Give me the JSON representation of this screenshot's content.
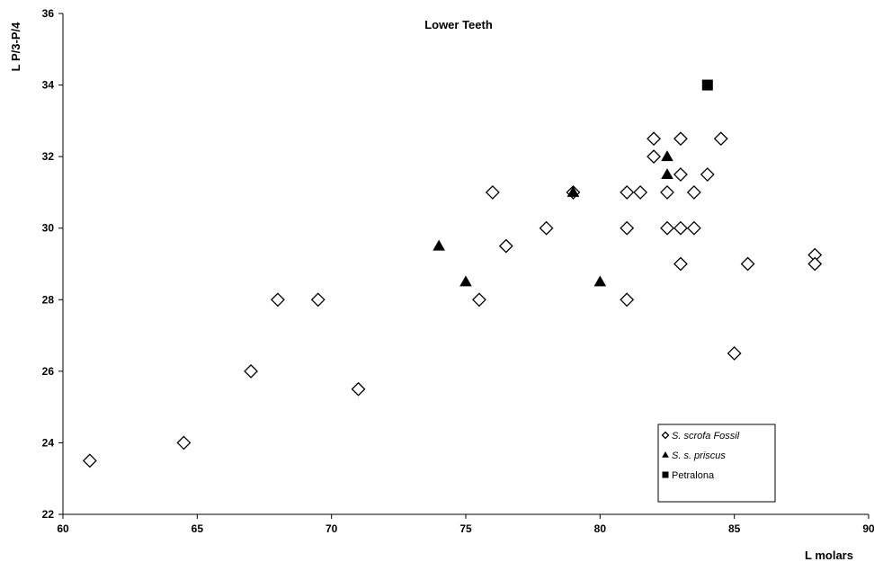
{
  "chart_data": {
    "type": "scatter",
    "title": "Lower Teeth",
    "xlabel": "L molars",
    "ylabel": "L P/3-P/4",
    "xlim": [
      60,
      90
    ],
    "ylim": [
      22,
      36
    ],
    "x_ticks": [
      "60",
      "65",
      "70",
      "75",
      "80",
      "85",
      "90"
    ],
    "y_ticks": [
      "22",
      "24",
      "26",
      "28",
      "30",
      "32",
      "34",
      "36"
    ],
    "grid": false,
    "legend_position": "bottom-right",
    "series": [
      {
        "name": "S. scrofa Fossil",
        "marker": "diamond-open",
        "color": "#000000",
        "points": [
          [
            61,
            23.5
          ],
          [
            64.5,
            24
          ],
          [
            67,
            26
          ],
          [
            68,
            28
          ],
          [
            69.5,
            28
          ],
          [
            71,
            25.5
          ],
          [
            75.5,
            28
          ],
          [
            76,
            31
          ],
          [
            76.5,
            29.5
          ],
          [
            78,
            30
          ],
          [
            79,
            31
          ],
          [
            81,
            31
          ],
          [
            81,
            30
          ],
          [
            81,
            28
          ],
          [
            81.5,
            31
          ],
          [
            82,
            32.5
          ],
          [
            82,
            32
          ],
          [
            82.5,
            31
          ],
          [
            82.5,
            30
          ],
          [
            83,
            32.5
          ],
          [
            83,
            31.5
          ],
          [
            83,
            30
          ],
          [
            83,
            29
          ],
          [
            83.5,
            31
          ],
          [
            83.5,
            30
          ],
          [
            84,
            31.5
          ],
          [
            84.5,
            32.5
          ],
          [
            85,
            26.5
          ],
          [
            85.5,
            29
          ],
          [
            88,
            29.25
          ],
          [
            88,
            29
          ]
        ]
      },
      {
        "name": "S. s. priscus",
        "marker": "triangle-filled",
        "color": "#000000",
        "points": [
          [
            74,
            29.5
          ],
          [
            75,
            28.5
          ],
          [
            79,
            31
          ],
          [
            80,
            28.5
          ],
          [
            82.5,
            32
          ],
          [
            82.5,
            31.5
          ]
        ]
      },
      {
        "name": "Petralona",
        "marker": "square-filled",
        "color": "#000000",
        "points": [
          [
            84,
            34
          ]
        ]
      }
    ]
  }
}
